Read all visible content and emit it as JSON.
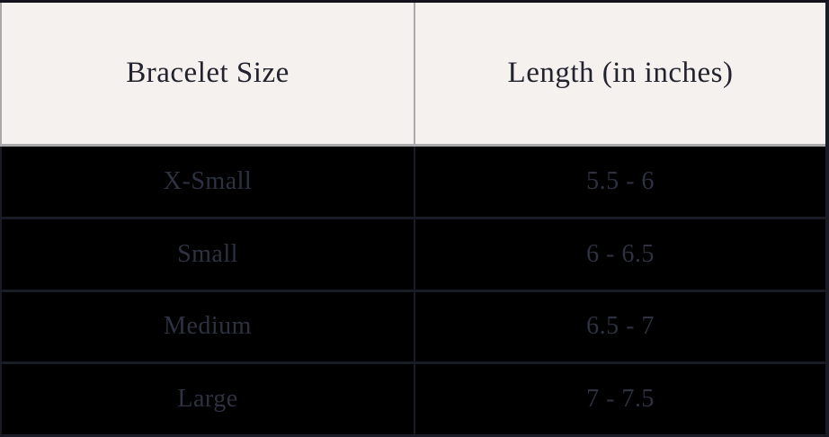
{
  "chart_data": {
    "type": "table",
    "title": "Bracelet size chart",
    "columns": [
      "Bracelet Size",
      "Length (in inches)"
    ],
    "rows": [
      {
        "size": "X-Small",
        "length": "5.5 - 6"
      },
      {
        "size": "Small",
        "length": "6 - 6.5"
      },
      {
        "size": "Medium",
        "length": "6.5 - 7"
      },
      {
        "size": "Large",
        "length": "7 - 7.5"
      }
    ]
  },
  "header": {
    "col_size": "Bracelet Size",
    "col_length": "Length (in inches)"
  },
  "colors": {
    "header_bg": "#f4f1ee",
    "header_text": "#22232e",
    "body_bg": "#000000",
    "body_text": "#2e3140",
    "gray_border": "#a9a9a9",
    "navy_border": "#191b25"
  }
}
